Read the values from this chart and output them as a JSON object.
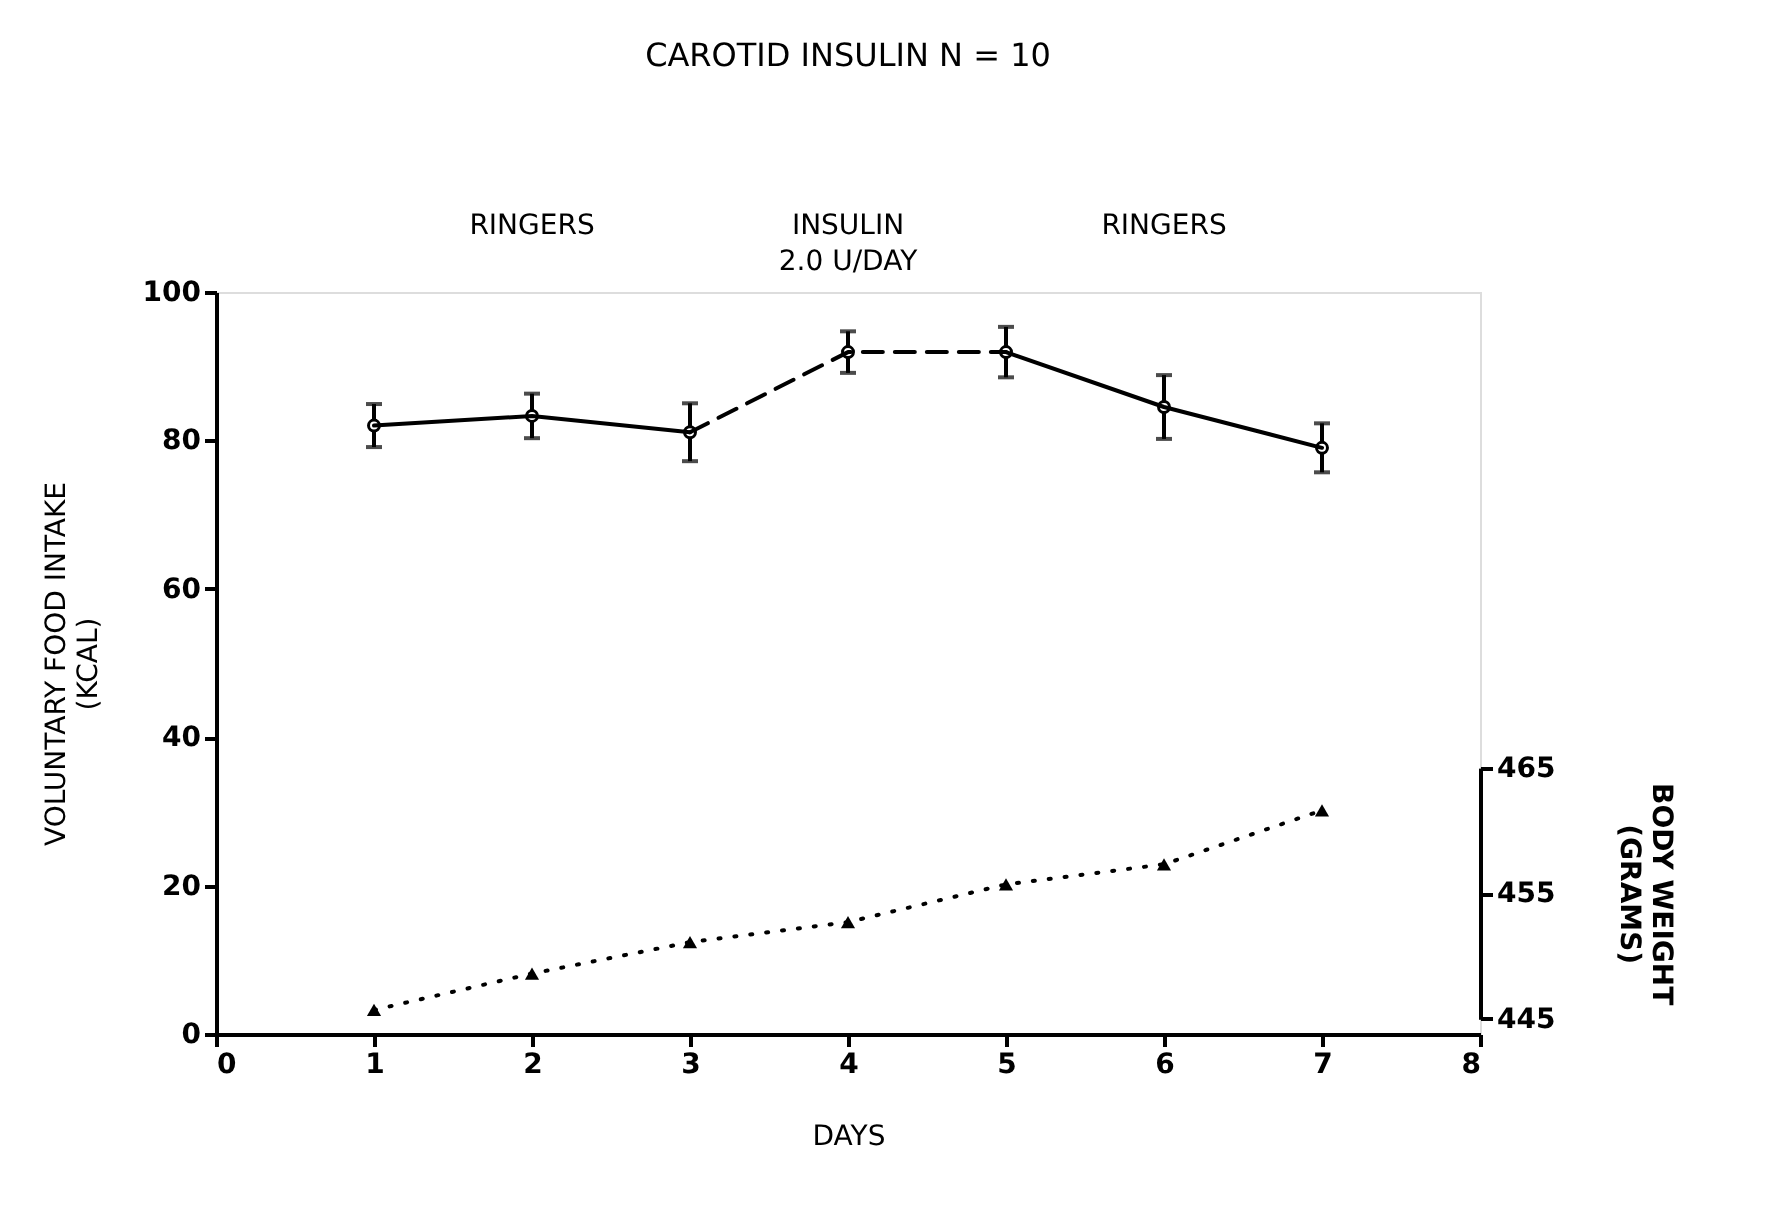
{
  "chart_data": {
    "type": "line",
    "title": "CAROTID INSULIN N = 10",
    "xlabel": "DAYS",
    "ylabel": "VOLUNTARY FOOD INTAKE\n(KCAL)",
    "y2label": "BODY WEIGHT\n(GRAMS)",
    "annotations": [
      "RINGERS",
      "INSULIN\n2.0 U/DAY",
      "RINGERS"
    ],
    "xlim": [
      0,
      8
    ],
    "xticks": [
      0,
      1,
      2,
      3,
      4,
      5,
      6,
      7,
      8
    ],
    "ylim": [
      0,
      100
    ],
    "yticks": [
      0,
      20,
      40,
      60,
      80,
      100
    ],
    "y2lim": [
      445,
      465
    ],
    "y2ticks": [
      445,
      455,
      465
    ],
    "grid": false,
    "series": [
      {
        "type": "scatter",
        "color": "#000000",
        "marker": "circle",
        "x": [
          1,
          2,
          3,
          4,
          5,
          6,
          7
        ],
        "values": [
          82.0,
          83.3,
          81.1,
          91.9,
          91.9,
          84.5,
          79.0
        ],
        "errors": [
          2.9,
          3.0,
          3.9,
          2.8,
          3.4,
          4.3,
          3.3
        ]
      },
      {
        "color": "#000000",
        "marker": "none",
        "line_style": "solid",
        "x": [
          1,
          2,
          3
        ],
        "values": [
          82.0,
          83.3,
          81.1
        ]
      },
      {
        "color": "#000000",
        "marker": "none",
        "line_style": "dashed",
        "x": [
          3,
          4,
          5
        ],
        "values": [
          81.1,
          91.9,
          91.9
        ]
      },
      {
        "color": "#000000",
        "marker": "none",
        "line_style": "solid",
        "x": [
          5,
          6,
          7
        ],
        "values": [
          91.9,
          84.5,
          79.0
        ]
      },
      {
        "axis": "y2",
        "color": "#000000",
        "marker": "triangle",
        "line_style": "dotted",
        "x": [
          1,
          2,
          3,
          4,
          5,
          6,
          7
        ],
        "values": [
          445.7,
          448.6,
          451.1,
          452.7,
          455.7,
          457.3,
          461.6
        ]
      }
    ]
  }
}
